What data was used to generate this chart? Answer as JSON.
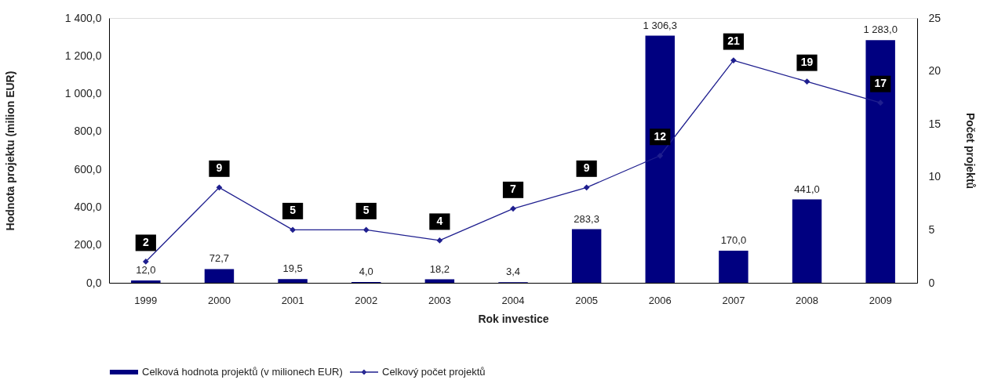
{
  "chart_data": {
    "type": "bar",
    "xlabel": "Rok investice",
    "ylabel": "Hodnota projektu (milion EUR)",
    "y2label": "Počet projektů",
    "categories": [
      "1999",
      "2000",
      "2001",
      "2002",
      "2003",
      "2004",
      "2005",
      "2006",
      "2007",
      "2008",
      "2009"
    ],
    "series": [
      {
        "name": "Celková hodnota projektů (v milionech EUR)",
        "color": "#000080",
        "values": [
          12.0,
          72.7,
          19.5,
          4.0,
          18.2,
          3.4,
          283.3,
          1306.3,
          170.0,
          441.0,
          1283.0
        ],
        "value_labels": [
          "12,0",
          "72,7",
          "19,5",
          "4,0",
          "18,2",
          "3,4",
          "283,3",
          "1 306,3",
          "170,0",
          "441,0",
          "1 283,0"
        ]
      },
      {
        "name": "Celkový počet projektů",
        "type": "line",
        "axis": "y2",
        "color": "#1f1f8f",
        "values": [
          2,
          9,
          5,
          5,
          4,
          7,
          9,
          12,
          21,
          19,
          17
        ],
        "value_labels": [
          "2",
          "9",
          "5",
          "5",
          "4",
          "7",
          "9",
          "12",
          "21",
          "19",
          "17"
        ]
      }
    ],
    "ylim": [
      0,
      1400
    ],
    "yticks": [
      {
        "value": 0,
        "label": "0,0"
      },
      {
        "value": 200,
        "label": "200,0"
      },
      {
        "value": 400,
        "label": "400,0"
      },
      {
        "value": 600,
        "label": "600,0"
      },
      {
        "value": 800,
        "label": "800,0"
      },
      {
        "value": 1000,
        "label": "1 000,0"
      },
      {
        "value": 1200,
        "label": "1 200,0"
      },
      {
        "value": 1400,
        "label": "1 400,0"
      }
    ],
    "y2lim": [
      0,
      25
    ],
    "y2ticks": [
      0,
      5,
      10,
      15,
      20,
      25
    ],
    "grid": false,
    "legend": "bottom",
    "marker": "diamond",
    "line_style": "solid"
  }
}
